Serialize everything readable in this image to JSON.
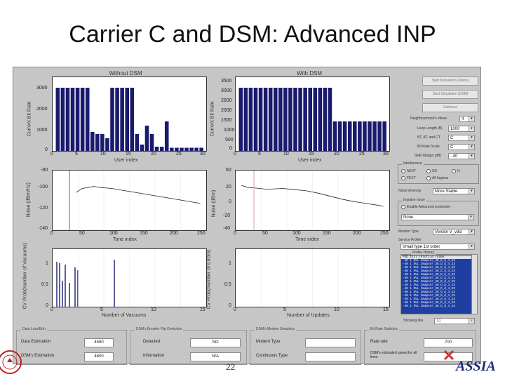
{
  "slide": {
    "title": "Carrier C and DSM: Advanced INP",
    "page_number": "22",
    "logo_text": "ASSIA"
  },
  "plots": {
    "p1": {
      "title": "Without DSM",
      "ylabel": "Current Bit Rate",
      "xlabel": "User index",
      "yticks": [
        "3000",
        "2000",
        "1000",
        "0"
      ],
      "xticks": [
        "0",
        "5",
        "10",
        "15",
        "20",
        "25",
        "30"
      ]
    },
    "p2": {
      "title": "With DSM",
      "ylabel": "Current Bit Rate",
      "xlabel": "User index",
      "yticks": [
        "3500",
        "3000",
        "2500",
        "2000",
        "1500",
        "1000",
        "500",
        "0"
      ],
      "xticks": [
        "0",
        "5",
        "10",
        "15",
        "20",
        "25",
        "30"
      ]
    },
    "p3": {
      "ylabel": "Noise (dBm/Hz)",
      "xlabel": "Tone index",
      "yticks": [
        "-80",
        "-100",
        "-120",
        "-140"
      ],
      "xticks": [
        "0",
        "50",
        "100",
        "150",
        "200",
        "250"
      ]
    },
    "p4": {
      "ylabel": "Noise (dBm)",
      "xlabel": "Time index",
      "yticks": [
        "60",
        "20",
        "0",
        "-20",
        "-40"
      ],
      "xticks": [
        "0",
        "50",
        "100",
        "150",
        "200",
        "250"
      ]
    },
    "p5": {
      "ylabel": "CV Prob(Number of Vacuums)",
      "xlabel": "Number of Vacuums",
      "yticks": [
        "1",
        "0.5",
        "0"
      ],
      "xticks": [
        "0",
        "5",
        "10",
        "15"
      ]
    },
    "p6": {
      "ylabel": "CV Prob(Number of Errors)",
      "xlabel": "Number of Updates",
      "yticks": [
        "1",
        "0.5",
        "0"
      ],
      "xticks": [
        "0",
        "5",
        "10",
        "15"
      ]
    }
  },
  "chart_data": [
    {
      "type": "bar",
      "title": "Without DSM",
      "xlabel": "User index",
      "ylabel": "Current Bit Rate",
      "ylim": [
        0,
        3500
      ],
      "x": [
        1,
        2,
        3,
        4,
        5,
        6,
        7,
        8,
        9,
        10,
        11,
        12,
        13,
        14,
        15,
        16,
        17,
        18,
        19,
        20,
        21,
        22,
        23,
        24,
        25,
        26,
        27,
        28,
        29,
        30
      ],
      "values": [
        3000,
        3000,
        3000,
        3000,
        3000,
        3000,
        3000,
        900,
        800,
        800,
        600,
        3000,
        3000,
        3000,
        3000,
        3000,
        800,
        300,
        1200,
        800,
        200,
        200,
        1400,
        150,
        150,
        150,
        150,
        150,
        150,
        150
      ]
    },
    {
      "type": "bar",
      "title": "With DSM",
      "xlabel": "User index",
      "ylabel": "Current Bit Rate",
      "ylim": [
        0,
        3500
      ],
      "x": [
        1,
        2,
        3,
        4,
        5,
        6,
        7,
        8,
        9,
        10,
        11,
        12,
        13,
        14,
        15,
        16,
        17,
        18,
        19,
        20,
        21,
        22,
        23,
        24,
        25,
        26,
        27,
        28,
        29,
        30
      ],
      "values": [
        3000,
        3000,
        3000,
        3000,
        3000,
        3000,
        3000,
        3000,
        3000,
        3000,
        3000,
        3000,
        3000,
        3000,
        3000,
        3000,
        3000,
        3000,
        3000,
        1400,
        1400,
        1400,
        1400,
        1400,
        1400,
        1400,
        1400,
        1400,
        1400,
        1400
      ]
    },
    {
      "type": "line",
      "xlabel": "Tone index",
      "ylabel": "Noise (dBm/Hz)",
      "ylim": [
        -140,
        -80
      ],
      "x": [
        40,
        50,
        60,
        70,
        80,
        100,
        120,
        140,
        160,
        180,
        200,
        220,
        240,
        250
      ],
      "y": [
        -102,
        -98,
        -97,
        -96,
        -97,
        -98,
        -100,
        -102,
        -104,
        -106,
        -108,
        -110,
        -112,
        -113
      ]
    },
    {
      "type": "line",
      "xlabel": "Time index",
      "ylabel": "Noise (dBm)",
      "ylim": [
        -40,
        60
      ],
      "x": [
        10,
        20,
        30,
        40,
        50,
        60,
        80,
        100,
        120,
        140,
        160,
        180,
        200,
        220,
        240,
        250
      ],
      "y": [
        35,
        32,
        31,
        30,
        29,
        29,
        30,
        28,
        26,
        22,
        17,
        12,
        8,
        5,
        2,
        0
      ]
    }
  ],
  "controls": {
    "buttons": [
      "Start Simulation (Demo)",
      "Start Simulation (DSM)",
      "Continue"
    ],
    "fields": [
      {
        "label": "Neighbourhood's  #lines",
        "value": "4"
      },
      {
        "label": "Loop Length (ft)",
        "value": "1000"
      },
      {
        "label": "BT, AT, and CT",
        "value": "C"
      },
      {
        "label": "Bit Rate Scale",
        "value": "C"
      },
      {
        "label": "SNR Margin (dB)",
        "value": "- 40"
      }
    ],
    "interference": {
      "title": "Interference",
      "options": [
        "NEXT",
        "SD",
        "H",
        "FEXT",
        "All Ingress"
      ]
    },
    "noise_diversity": {
      "label": "Noise diversity",
      "value": "More Stable"
    },
    "impulse": {
      "title": "Impulse noise",
      "option": "Enable Advanced protection",
      "value": "None"
    },
    "modem_type": {
      "label": "Modem Type",
      "value": "Vendor V_vdsl"
    },
    "service_profile": {
      "label": "Service Profile",
      "value": "Vmail type 1st order"
    },
    "profile_history": {
      "title": "Profile History",
      "header": "PSD   Intl  |Profile    |name",
      "rows": [
        "-40  1  SVL  Imapsnr_38_D_d_4_23",
        "-40  1  SVL  Imapsnr_38_D_d_4_23",
        "-40  1  SVL  Imapsnr_38_D_d_4_23",
        "-40  1  SVL  Imapsnr_38_D_d_4_23",
        "-40  1  SVL  Imapsnr_38_D_d_4_23",
        "-40  1  SVL  Imapsnr_38_D_d_4_23",
        "-40  1  SVL  Imapsnr_38_D_d_4_23",
        "-40  1  SVL  Imapsnr_38_D_d_4_23",
        "-40  1  SVL  Imapsnr_38_D_d_4_23",
        "-40  1  SVL  Imapsnr_38_D_d_4_23",
        "-40  1  SVL  Imapsnr_38_D_d_4_23",
        "-40  1  SVL  Imapsnr_38_D_d_4_23",
        "-40  1  SVL  Imapsnr_38_D_d_4_23",
        "-40  1  SVL  Imapsnr_38_D_d_4_23"
      ]
    },
    "showing_line": {
      "label": "Showing line",
      "value": "10"
    }
  },
  "bottom": {
    "sync": {
      "title": "Data Loss/Buh",
      "rows": [
        {
          "label": "Data Estimation",
          "value": "4590"
        },
        {
          "label": "DSM's Estimation",
          "value": "4600"
        }
      ]
    },
    "breaker": {
      "title": "DSM's Breaker Flip Detection",
      "rows": [
        {
          "label": "Detected",
          "value": "NO"
        },
        {
          "label": "Information",
          "value": "N/A"
        }
      ]
    },
    "bmodem": {
      "title": "DSM's Modem Simulator",
      "rows": [
        {
          "label": "Modem Type",
          "value": ""
        },
        {
          "label": "Continuous Type",
          "value": ""
        }
      ]
    },
    "rate": {
      "title": "Bit Rate Statistics",
      "rows": [
        {
          "label": "Rate rate",
          "value": "700"
        },
        {
          "label": "DSM's estimated speed for all lines",
          "value": "-"
        }
      ]
    }
  }
}
